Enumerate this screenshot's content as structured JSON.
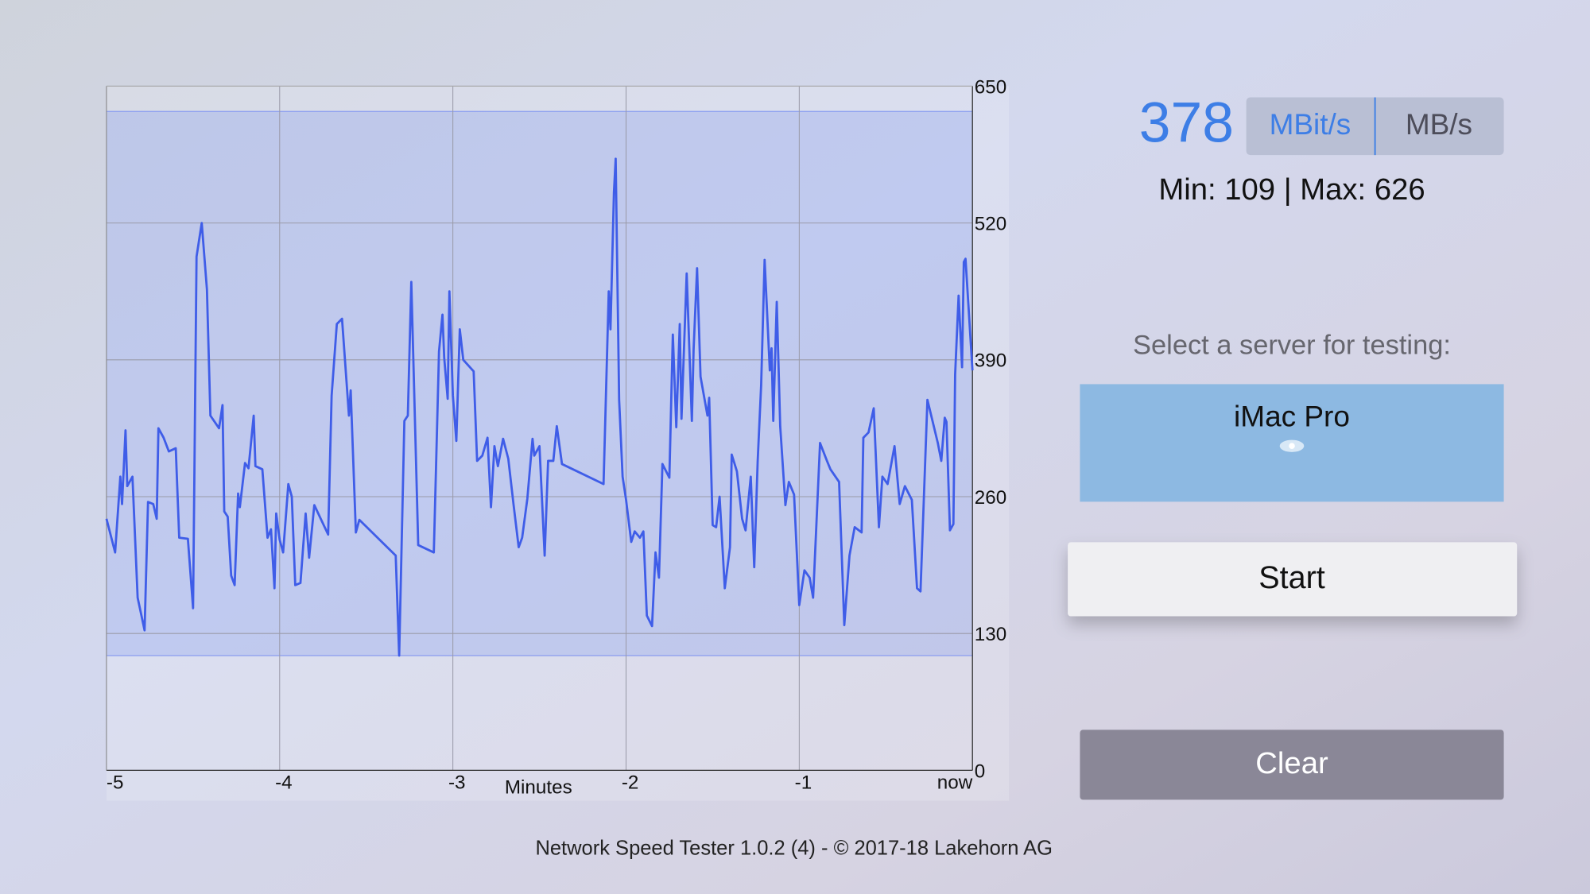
{
  "chart_data": {
    "type": "line",
    "x_label": "Minutes",
    "color": "#3f5de8",
    "xlim": [
      -5,
      0
    ],
    "xticks": [
      -5,
      -4,
      -3,
      -2,
      -1,
      {
        "value": 0,
        "label": "now"
      }
    ],
    "ylim": [
      0,
      650
    ],
    "yticks": [
      0,
      130,
      260,
      390,
      520,
      650
    ],
    "grid": true,
    "x": [
      -5,
      -4.95,
      -4.92,
      -4.91,
      -4.89,
      -4.88,
      -4.85,
      -4.82,
      -4.78,
      -4.76,
      -4.73,
      -4.71,
      -4.7,
      -4.67,
      -4.64,
      -4.6,
      -4.58,
      -4.53,
      -4.5,
      -4.48,
      -4.45,
      -4.42,
      -4.4,
      -4.35,
      -4.33,
      -4.32,
      -4.3,
      -4.28,
      -4.26,
      -4.24,
      -4.23,
      -4.2,
      -4.18,
      -4.15,
      -4.14,
      -4.1,
      -4.07,
      -4.05,
      -4.03,
      -4.02,
      -4,
      -3.98,
      -3.95,
      -3.93,
      -3.91,
      -3.88,
      -3.85,
      -3.83,
      -3.8,
      -3.72,
      -3.7,
      -3.67,
      -3.64,
      -3.6,
      -3.59,
      -3.56,
      -3.54,
      -3.33,
      -3.31,
      -3.28,
      -3.26,
      -3.24,
      -3.2,
      -3.11,
      -3.1,
      -3.08,
      -3.06,
      -3.05,
      -3.03,
      -3.02,
      -3,
      -2.98,
      -2.96,
      -2.94,
      -2.88,
      -2.86,
      -2.83,
      -2.8,
      -2.78,
      -2.76,
      -2.74,
      -2.71,
      -2.68,
      -2.65,
      -2.62,
      -2.6,
      -2.57,
      -2.54,
      -2.53,
      -2.5,
      -2.47,
      -2.45,
      -2.42,
      -2.4,
      -2.37,
      -2.13,
      -2.1,
      -2.09,
      -2.07,
      -2.06,
      -2.04,
      -2.02,
      -2,
      -1.97,
      -1.95,
      -1.92,
      -1.9,
      -1.88,
      -1.85,
      -1.83,
      -1.81,
      -1.79,
      -1.75,
      -1.73,
      -1.71,
      -1.69,
      -1.68,
      -1.65,
      -1.62,
      -1.61,
      -1.59,
      -1.57,
      -1.53,
      -1.52,
      -1.5,
      -1.48,
      -1.46,
      -1.43,
      -1.4,
      -1.39,
      -1.36,
      -1.33,
      -1.31,
      -1.28,
      -1.26,
      -1.24,
      -1.22,
      -1.2,
      -1.17,
      -1.16,
      -1.15,
      -1.13,
      -1.11,
      -1.08,
      -1.06,
      -1.03,
      -1,
      -0.97,
      -0.94,
      -0.92,
      -0.88,
      -0.84,
      -0.82,
      -0.77,
      -0.74,
      -0.71,
      -0.68,
      -0.64,
      -0.63,
      -0.6,
      -0.57,
      -0.54,
      -0.52,
      -0.49,
      -0.45,
      -0.42,
      -0.39,
      -0.35,
      -0.32,
      -0.3,
      -0.26,
      -0.2,
      -0.18,
      -0.16,
      -0.15,
      -0.13,
      -0.11,
      -0.1,
      -0.08,
      -0.06,
      -0.05,
      -0.04,
      0
    ],
    "values": [
      239,
      207,
      279,
      253,
      323,
      270,
      279,
      164,
      133,
      255,
      253,
      239,
      325,
      316,
      303,
      306,
      221,
      220,
      154,
      488,
      520,
      457,
      337,
      325,
      347,
      246,
      241,
      185,
      176,
      263,
      250,
      292,
      287,
      337,
      289,
      286,
      221,
      229,
      173,
      244,
      219,
      207,
      272,
      260,
      176,
      178,
      244,
      202,
      252,
      224,
      356,
      424,
      429,
      337,
      361,
      226,
      238,
      204,
      109,
      332,
      337,
      464,
      214,
      207,
      270,
      398,
      433,
      392,
      353,
      455,
      356,
      313,
      419,
      390,
      379,
      294,
      299,
      316,
      250,
      308,
      289,
      315,
      296,
      253,
      212,
      221,
      258,
      315,
      299,
      308,
      204,
      294,
      294,
      327,
      291,
      272,
      455,
      419,
      549,
      581,
      352,
      279,
      257,
      217,
      227,
      221,
      227,
      147,
      137,
      207,
      183,
      291,
      278,
      414,
      326,
      424,
      334,
      472,
      332,
      400,
      477,
      374,
      337,
      354,
      233,
      231,
      260,
      173,
      212,
      300,
      284,
      239,
      228,
      279,
      193,
      294,
      366,
      485,
      380,
      401,
      332,
      445,
      327,
      252,
      274,
      262,
      157,
      190,
      183,
      164,
      311,
      294,
      286,
      274,
      138,
      204,
      231,
      226,
      316,
      321,
      344,
      231,
      279,
      272,
      308,
      253,
      270,
      257,
      173,
      170,
      352,
      311,
      294,
      335,
      331,
      228,
      234,
      376,
      451,
      383,
      483,
      486,
      380
    ]
  },
  "speed": {
    "current": 378,
    "units": [
      "MBit/s",
      "MB/s"
    ],
    "min_label": "Min:",
    "min": 109,
    "separator": "|",
    "max_label": "Max:",
    "max": 626
  },
  "server": {
    "prompt": "Select a server for testing:",
    "name": "iMac Pro"
  },
  "buttons": {
    "start": "Start",
    "clear": "Clear"
  },
  "footer": "Network Speed Tester 1.0.2 (4) - © 2017-18 Lakehorn AG"
}
